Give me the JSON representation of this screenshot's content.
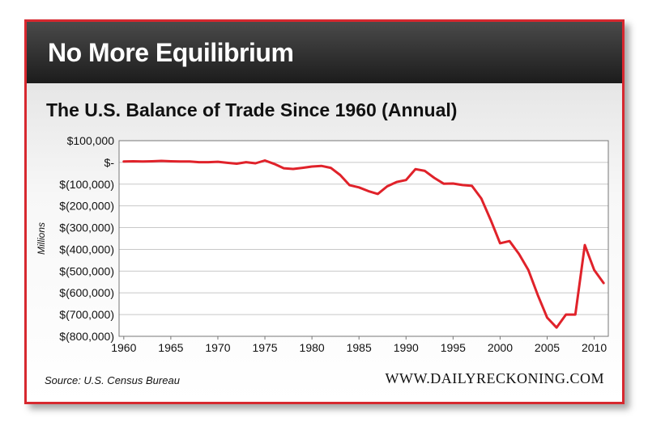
{
  "header": {
    "title": "No More Equilibrium"
  },
  "colors": {
    "accent": "#d7282f",
    "line": "#e0222a",
    "header_bg": "#2a2a2a"
  },
  "footer": {
    "source": "Source: U.S. Census Bureau",
    "website": "WWW.DAILYRECKONING.COM"
  },
  "chart_data": {
    "type": "line",
    "title": "The U.S. Balance of Trade Since 1960 (Annual)",
    "xlabel": "",
    "ylabel": "Millions",
    "xlim": [
      1959.5,
      2011.5
    ],
    "ylim": [
      -800000,
      100000
    ],
    "grid": true,
    "x_ticks": [
      1960,
      1965,
      1970,
      1975,
      1980,
      1985,
      1990,
      1995,
      2000,
      2005,
      2010
    ],
    "y_ticks": [
      100000,
      0,
      -100000,
      -200000,
      -300000,
      -400000,
      -500000,
      -600000,
      -700000,
      -800000
    ],
    "y_tick_labels": [
      "$100,000",
      "$-",
      "$(100,000)",
      "$(200,000)",
      "$(300,000)",
      "$(400,000)",
      "$(500,000)",
      "$(600,000)",
      "$(700,000)",
      "$(800,000)"
    ],
    "series": [
      {
        "x": [
          1960,
          1961,
          1962,
          1963,
          1964,
          1965,
          1966,
          1967,
          1968,
          1969,
          1970,
          1971,
          1972,
          1973,
          1974,
          1975,
          1976,
          1977,
          1978,
          1979,
          1980,
          1981,
          1982,
          1983,
          1984,
          1985,
          1986,
          1987,
          1988,
          1989,
          1990,
          1991,
          1992,
          1993,
          1994,
          1995,
          1996,
          1997,
          1998,
          1999,
          2000,
          2001,
          2002,
          2003,
          2004,
          2005,
          2006,
          2007,
          2008,
          2009,
          2010,
          2011
        ],
        "values": [
          4000,
          5000,
          4000,
          5000,
          7000,
          5000,
          4000,
          4000,
          1000,
          1000,
          3000,
          -2000,
          -6000,
          1000,
          -4000,
          9000,
          -7000,
          -27000,
          -30000,
          -25000,
          -19000,
          -16000,
          -25000,
          -58000,
          -105000,
          -115000,
          -132000,
          -145000,
          -110000,
          -90000,
          -81000,
          -31000,
          -39000,
          -71000,
          -98000,
          -97000,
          -104000,
          -108000,
          -166000,
          -265000,
          -372000,
          -362000,
          -421000,
          -495000,
          -610000,
          -714000,
          -760000,
          -700000,
          -700000,
          -380000,
          -495000,
          -555000
        ]
      }
    ]
  }
}
